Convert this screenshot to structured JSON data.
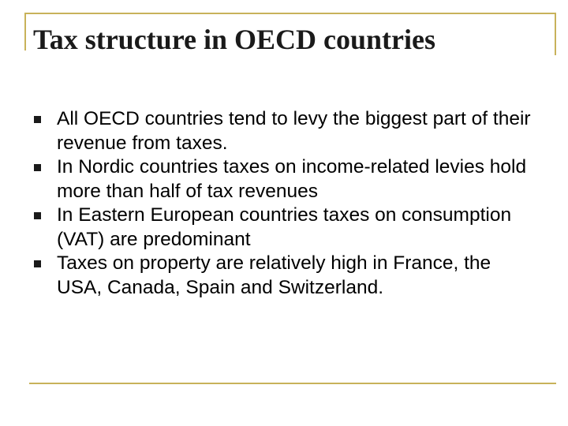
{
  "slide": {
    "title": "Tax structure in OECD countries",
    "bullets": [
      "All OECD countries tend to levy the biggest part of their revenue from taxes.",
      "In Nordic countries taxes on income-related levies hold more than half of tax revenues",
      "In Eastern European countries taxes on consumption (VAT) are predominant",
      "Taxes on property are relatively high in France, the USA, Canada, Spain and Switzerland."
    ]
  },
  "theme": {
    "frame_color": "#c8b25a",
    "bullet_icon": "square-bullet-icon"
  }
}
